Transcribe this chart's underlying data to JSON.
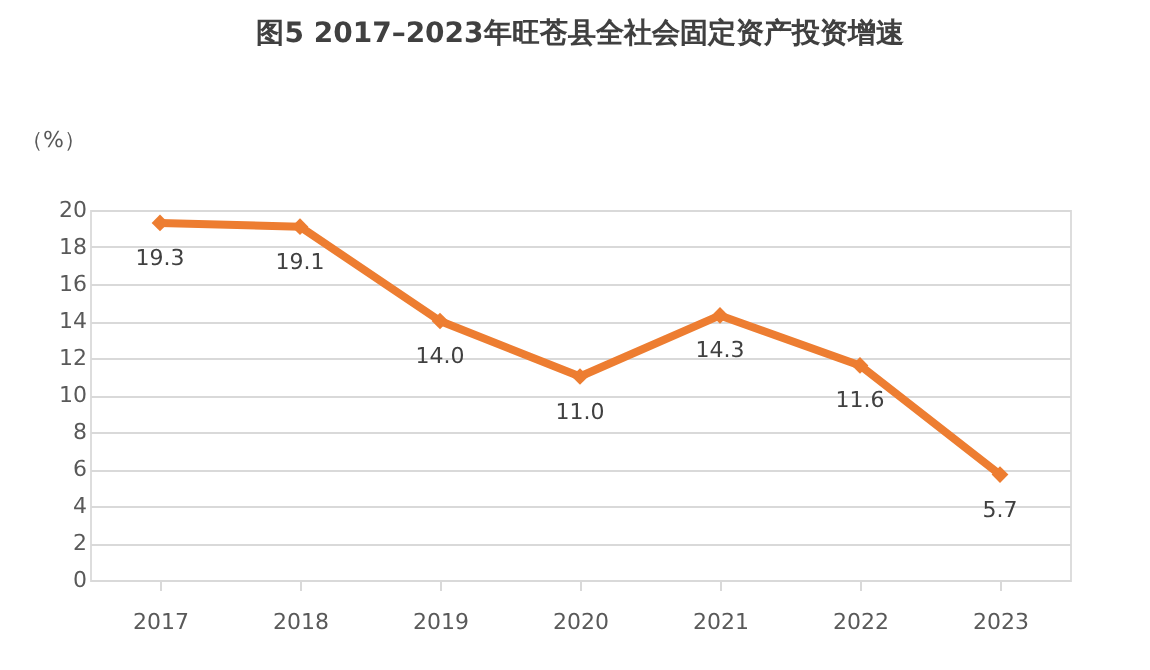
{
  "chart_data": {
    "type": "line",
    "title": "图5    2017–2023年旺苍县全社会固定资产投资增速",
    "ylabel": "（%）",
    "categories": [
      "2017",
      "2018",
      "2019",
      "2020",
      "2021",
      "2022",
      "2023"
    ],
    "series": [
      {
        "color": "#ed7d31",
        "values": [
          19.3,
          19.1,
          14.0,
          11.0,
          14.3,
          11.6,
          5.7
        ],
        "value_labels": [
          "19.3",
          "19.1",
          "14.0",
          "11.0",
          "14.3",
          "11.6",
          "5.7"
        ]
      }
    ],
    "ylim": [
      0,
      20
    ],
    "yticks": [
      0,
      2,
      4,
      6,
      8,
      10,
      12,
      14,
      16,
      18,
      20
    ],
    "grid": "y",
    "marker": "diamond",
    "line_style": "solid"
  }
}
